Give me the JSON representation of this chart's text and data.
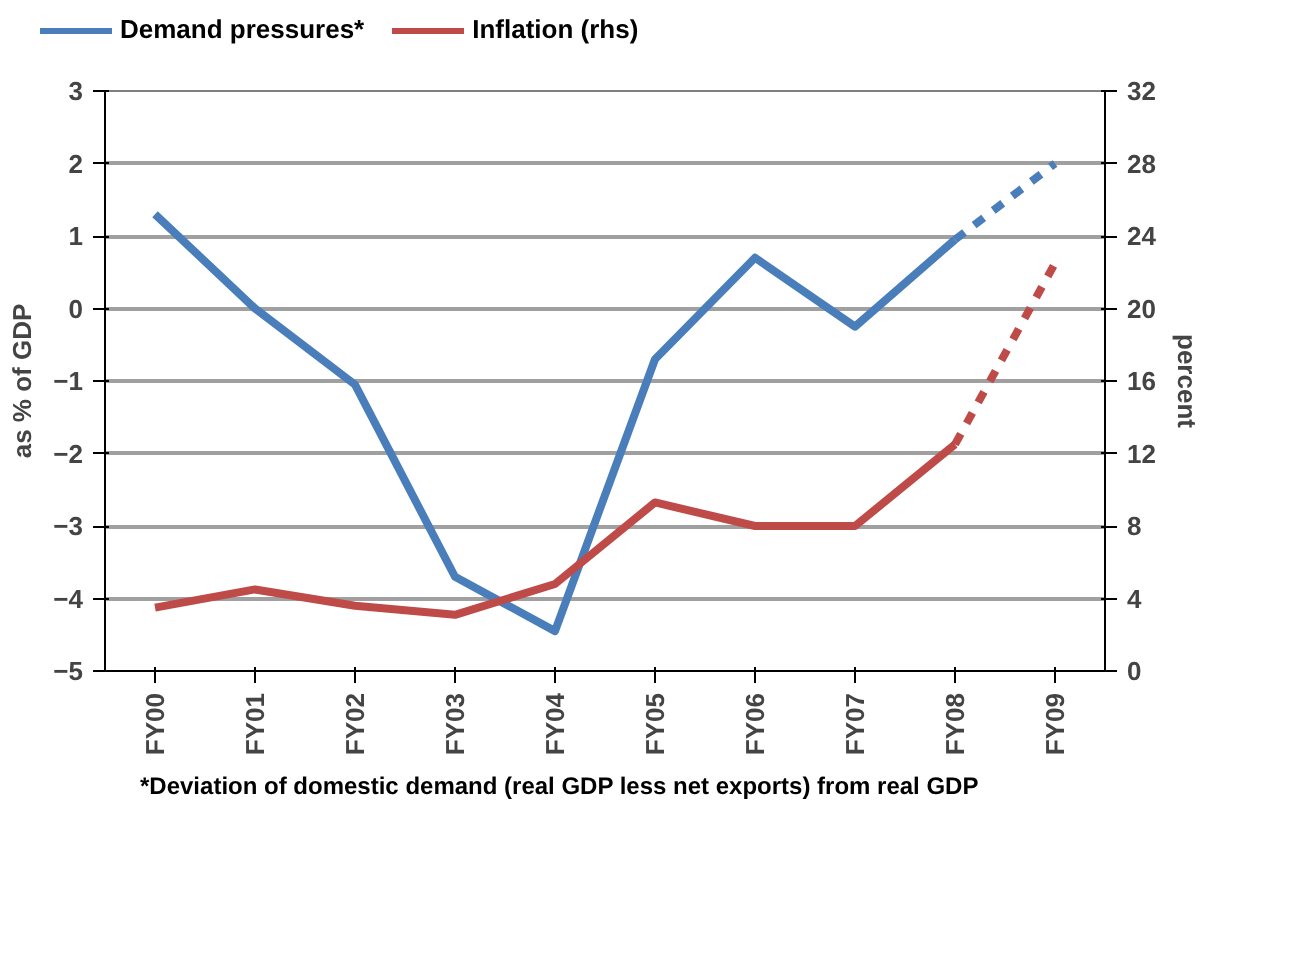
{
  "chart_data": {
    "type": "line",
    "categories": [
      "FY00",
      "FY01",
      "FY02",
      "FY03",
      "FY04",
      "FY05",
      "FY06",
      "FY07",
      "FY08",
      "FY09"
    ],
    "series": [
      {
        "name": "Demand pressures*",
        "color": "#4a7ebb",
        "values": [
          1.3,
          0.0,
          -1.05,
          -3.7,
          -4.45,
          -0.7,
          0.7,
          -0.25,
          0.95,
          null
        ]
      },
      {
        "color": "#4a7ebb",
        "line_style": "dashed",
        "values": [
          null,
          null,
          null,
          null,
          null,
          null,
          null,
          null,
          0.95,
          2.0
        ]
      },
      {
        "name": "Inflation (rhs)",
        "color": "#be4b48",
        "axis": "y2",
        "values": [
          3.5,
          4.5,
          3.6,
          3.1,
          4.8,
          9.3,
          8.0,
          8.0,
          12.5,
          null
        ]
      },
      {
        "color": "#be4b48",
        "axis": "y2",
        "line_style": "dashed",
        "values": [
          null,
          null,
          null,
          null,
          null,
          null,
          null,
          null,
          12.5,
          22.5
        ]
      }
    ],
    "ylabel": "as % of GDP",
    "y2label": "percent",
    "ylim": [
      -5,
      3
    ],
    "yticks": [
      -5,
      -4,
      -3,
      -2,
      -1,
      0,
      1,
      2,
      3
    ],
    "y2lim": [
      0,
      32
    ],
    "y2ticks": [
      0,
      4,
      8,
      12,
      16,
      20,
      24,
      28,
      32
    ],
    "grid": "y",
    "legend": "top",
    "line_style": "solid",
    "marker": "none",
    "annotations": [
      "*Deviation of domestic demand (real GDP less net exports) from real GDP"
    ]
  }
}
